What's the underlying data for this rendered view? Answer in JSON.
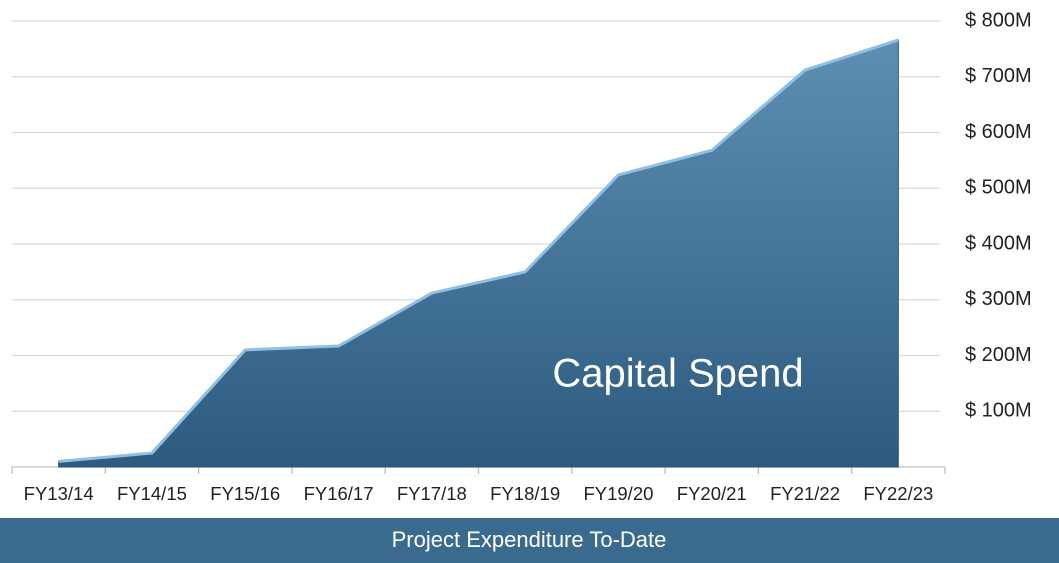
{
  "chart_data": {
    "type": "area",
    "annotation": "Capital Spend",
    "footer": "Project Expenditure To-Date",
    "categories": [
      "FY13/14",
      "FY14/15",
      "FY15/16",
      "FY16/17",
      "FY17/18",
      "FY18/19",
      "FY19/20",
      "FY20/21",
      "FY21/22",
      "FY22/23"
    ],
    "values": [
      10,
      25,
      210,
      217,
      312,
      350,
      524,
      568,
      712,
      766
    ],
    "color": "#3d6f93",
    "ylim": [
      0,
      800
    ],
    "yticks": [
      {
        "value": 100,
        "label": "$ 100M"
      },
      {
        "value": 200,
        "label": "$ 200M"
      },
      {
        "value": 300,
        "label": "$ 300M"
      },
      {
        "value": 400,
        "label": "$ 400M"
      },
      {
        "value": 500,
        "label": "$ 500M"
      },
      {
        "value": 600,
        "label": "$ 600M"
      },
      {
        "value": 700,
        "label": "$ 700M"
      },
      {
        "value": 800,
        "label": "$ 800M"
      }
    ],
    "grid": true
  }
}
